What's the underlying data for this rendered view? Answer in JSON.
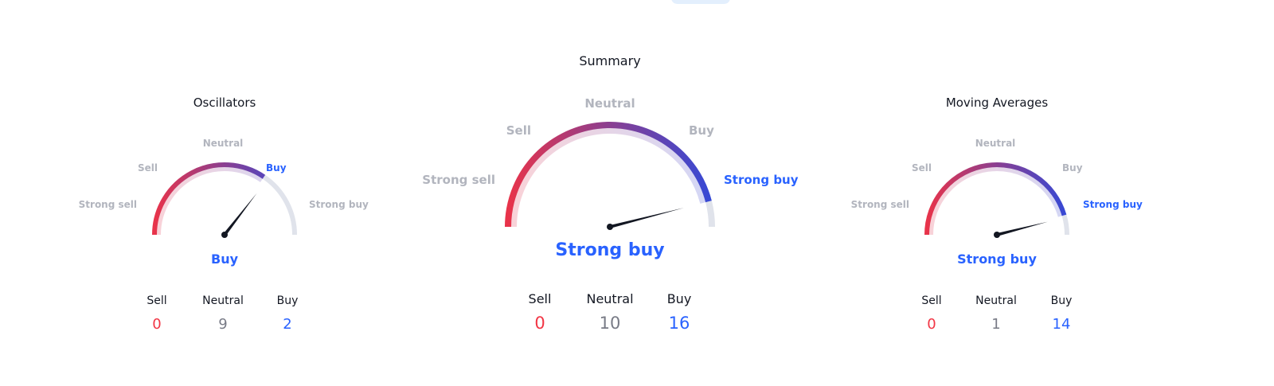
{
  "colors": {
    "sell": "#f23645",
    "neutral": "#787b86",
    "buy": "#2962ff",
    "inactive": "#b2b5be",
    "track": "#e0e3eb",
    "grad_start": "#e8334a",
    "grad_mid": "#8a3f91",
    "grad_end": "#3549d6"
  },
  "scale_labels": [
    "Strong sell",
    "Sell",
    "Neutral",
    "Buy",
    "Strong buy"
  ],
  "gauges": [
    {
      "id": "oscillators",
      "title": "Oscillators",
      "result": "Buy",
      "active_label": "Buy",
      "fill_fraction": 0.69,
      "needle_fraction": 0.71,
      "counts": [
        {
          "label": "Sell",
          "value": "0"
        },
        {
          "label": "Neutral",
          "value": "9"
        },
        {
          "label": "Buy",
          "value": "2"
        }
      ]
    },
    {
      "id": "summary",
      "title": "Summary",
      "result": "Strong buy",
      "active_label": "Strong buy",
      "fill_fraction": 0.92,
      "needle_fraction": 0.92,
      "counts": [
        {
          "label": "Sell",
          "value": "0"
        },
        {
          "label": "Neutral",
          "value": "10"
        },
        {
          "label": "Buy",
          "value": "16"
        }
      ]
    },
    {
      "id": "moving-averages",
      "title": "Moving Averages",
      "result": "Strong buy",
      "active_label": "Strong buy",
      "fill_fraction": 0.91,
      "needle_fraction": 0.92,
      "counts": [
        {
          "label": "Sell",
          "value": "0"
        },
        {
          "label": "Neutral",
          "value": "1"
        },
        {
          "label": "Buy",
          "value": "14"
        }
      ]
    }
  ]
}
